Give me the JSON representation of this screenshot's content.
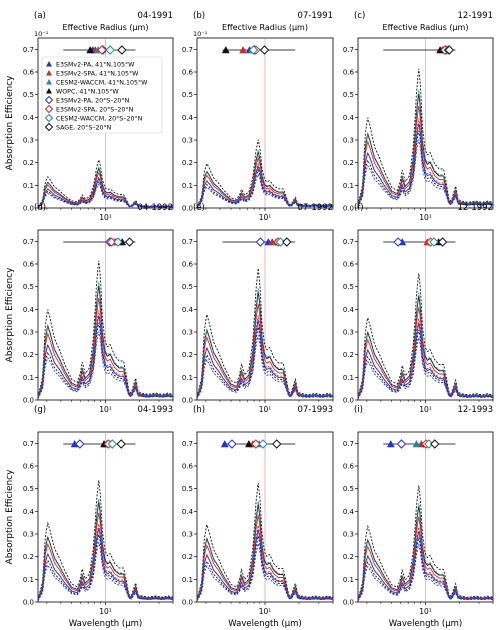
{
  "figure": {
    "xlabel": "Wavelength (μm)",
    "ylabel": "Absorption Efficiency",
    "top_axis_label": "Effective Radius (μm)",
    "top_tick_label": "10⁻¹",
    "yticks": [
      "0.0",
      "0.1",
      "0.2",
      "0.3",
      "0.4",
      "0.5",
      "0.6",
      "0.7"
    ],
    "xtick_label": "10¹",
    "ylim": [
      0,
      0.75
    ]
  },
  "series_style": {
    "E3SMv2-PA, 41°N,105°W": {
      "color": "#1f33e0",
      "marker": "triangle"
    },
    "E3SMv2-SPA, 41°N,105°W": {
      "color": "#d92626",
      "marker": "triangle"
    },
    "CESM2-WACCM, 41°N,105°W": {
      "color": "#1f8ea0",
      "marker": "triangle"
    },
    "WOPC, 41°N,105°W": {
      "color": "#111111",
      "marker": "triangle"
    },
    "E3SMv2-PA, 20°S–20°N": {
      "color": "#1f33e0",
      "marker": "diamond"
    },
    "E3SMv2-SPA, 20°S–20°N": {
      "color": "#d92626",
      "marker": "diamond"
    },
    "CESM2-WACCM, 20°S–20°N": {
      "color": "#1f8ea0",
      "marker": "diamond"
    },
    "SAGE, 20°S–20°N": {
      "color": "#111111",
      "marker": "diamond"
    }
  },
  "legend": [
    "E3SMv2-PA, 41°N,105°W",
    "E3SMv2-SPA, 41°N,105°W",
    "CESM2-WACCM, 41°N,105°W",
    "WOPC, 41°N,105°W",
    "E3SMv2-PA, 20°S–20°N",
    "E3SMv2-SPA, 20°S–20°N",
    "CESM2-WACCM, 20°S–20°N",
    "SAGE, 20°S–20°N"
  ],
  "chart_data": [
    {
      "type": "line",
      "panel": "(a)",
      "date": "04-1991",
      "scale": 0.19,
      "xlim": [
        2.5,
        40
      ],
      "xscale": "log",
      "reff": {
        "E3SMv2-PA, 41°N,105°W": 0.0077,
        "E3SMv2-SPA, 41°N,105°W": 0.0081,
        "CESM2-WACCM, 41°N,105°W": 0.0086,
        "WOPC, 41°N,105°W": 0.0073,
        "E3SMv2-PA, 20°S–20°N": 0.0095,
        "E3SMv2-SPA, 20°S–20°N": 0.0093,
        "CESM2-WACCM, 20°S–20°N": 0.011,
        "SAGE, 20°S–20°N": 0.014
      }
    },
    {
      "type": "line",
      "panel": "(b)",
      "date": "07-1991",
      "scale": 0.27,
      "xlim": [
        2.5,
        40
      ],
      "xscale": "log",
      "reff": {
        "E3SMv2-PA, 41°N,105°W": 0.0073,
        "E3SMv2-SPA, 41°N,105°W": 0.0064,
        "CESM2-WACCM, 41°N,105°W": 0.0077,
        "WOPC, 41°N,105°W": 0.0045,
        "E3SMv2-PA, 20°S–20°N": 0.0081,
        "E3SMv2-SPA, 20°S–20°N": 0.0083,
        "CESM2-WACCM, 20°S–20°N": 0.0079,
        "SAGE, 20°S–20°N": 0.0099
      }
    },
    {
      "type": "line",
      "panel": "(c)",
      "date": "12-1991",
      "scale": 0.55,
      "xlim": [
        2.5,
        40
      ],
      "xscale": "log",
      "reff": {
        "E3SMv2-PA, 41°N,105°W": 0.0143,
        "E3SMv2-SPA, 41°N,105°W": 0.0141,
        "CESM2-WACCM, 41°N,105°W": 0.0155,
        "WOPC, 41°N,105°W": 0.0135,
        "E3SMv2-PA, 20°S–20°N": 0.0152,
        "E3SMv2-SPA, 20°S–20°N": 0.0149,
        "CESM2-WACCM, 20°S–20°N": 0.0159,
        "SAGE, 20°S–20°N": 0.0163
      }
    },
    {
      "type": "line",
      "panel": "(d)",
      "date": "04-1992",
      "scale": 0.55,
      "xlim": [
        2.5,
        40
      ],
      "xscale": "log",
      "reff": {
        "E3SMv2-PA, 41°N,105°W": 0.0124,
        "E3SMv2-SPA, 41°N,105°W": 0.0121,
        "CESM2-WACCM, 41°N,105°W": 0.0133,
        "WOPC, 41°N,105°W": 0.0141,
        "E3SMv2-PA, 20°S–20°N": 0.0109,
        "E3SMv2-SPA, 20°S–20°N": 0.0113,
        "CESM2-WACCM, 20°S–20°N": 0.0129,
        "SAGE, 20°S–20°N": 0.0164
      }
    },
    {
      "type": "line",
      "panel": "(e)",
      "date": "07-1992",
      "scale": 0.52,
      "xlim": [
        2.5,
        40
      ],
      "xscale": "log",
      "reff": {
        "E3SMv2-PA, 41°N,105°W": 0.0107,
        "E3SMv2-SPA, 41°N,105°W": 0.0116,
        "CESM2-WACCM, 41°N,105°W": 0.0125,
        "WOPC, 41°N,105°W": 0.0133,
        "E3SMv2-PA, 20°S–20°N": 0.0091,
        "E3SMv2-SPA, 20°S–20°N": 0.0131,
        "CESM2-WACCM, 20°S–20°N": 0.0137,
        "SAGE, 20°S–20°N": 0.0156
      }
    },
    {
      "type": "line",
      "panel": "(f)",
      "date": "12-1992",
      "scale": 0.5,
      "xlim": [
        2.5,
        40
      ],
      "xscale": "log",
      "reff": {
        "E3SMv2-PA, 41°N,105°W": 0.0062,
        "E3SMv2-SPA, 41°N,105°W": 0.0104,
        "CESM2-WACCM, 41°N,105°W": 0.0117,
        "WOPC, 41°N,105°W": 0.0131,
        "E3SMv2-PA, 20°S–20°N": 0.0057,
        "E3SMv2-SPA, 20°S–20°N": 0.0111,
        "CESM2-WACCM, 20°S–20°N": 0.0119,
        "SAGE, 20°S–20°N": 0.0142
      }
    },
    {
      "type": "line",
      "panel": "(g)",
      "date": "04-1993",
      "scale": 0.48,
      "xlim": [
        2.5,
        40
      ],
      "xscale": "log",
      "reff": {
        "E3SMv2-PA, 41°N,105°W": 0.0053,
        "E3SMv2-SPA, 41°N,105°W": 0.0102,
        "CESM2-WACCM, 41°N,105°W": 0.0111,
        "WOPC, 41°N,105°W": 0.0097,
        "E3SMv2-PA, 20°S–20°N": 0.0059,
        "E3SMv2-SPA, 20°S–20°N": 0.0106,
        "CESM2-WACCM, 20°S–20°N": 0.0115,
        "SAGE, 20°S–20°N": 0.0138
      }
    },
    {
      "type": "line",
      "panel": "(h)",
      "date": "07-1993",
      "scale": 0.47,
      "xlim": [
        2.5,
        40
      ],
      "xscale": "log",
      "reff": {
        "E3SMv2-PA, 41°N,105°W": 0.0044,
        "E3SMv2-SPA, 41°N,105°W": 0.0078,
        "CESM2-WACCM, 41°N,105°W": 0.0089,
        "WOPC, 41°N,105°W": 0.0072,
        "E3SMv2-PA, 20°S–20°N": 0.0051,
        "E3SMv2-SPA, 20°S–20°N": 0.0083,
        "CESM2-WACCM, 20°S–20°N": 0.0096,
        "SAGE, 20°S–20°N": 0.0127
      }
    },
    {
      "type": "line",
      "panel": "(i)",
      "date": "12-1993",
      "scale": 0.46,
      "xlim": [
        2.5,
        40
      ],
      "xscale": "log",
      "reff": {
        "E3SMv2-PA, 41°N,105°W": 0.0049,
        "E3SMv2-SPA, 41°N,105°W": 0.0092,
        "CESM2-WACCM, 41°N,105°W": 0.0083,
        "WOPC, 41°N,105°W": 0.0102,
        "E3SMv2-PA, 20°S–20°N": 0.0061,
        "E3SMv2-SPA, 20°S–20°N": 0.0101,
        "CESM2-WACCM, 20°S–20°N": 0.0107,
        "SAGE, 20°S–20°N": 0.0121
      }
    }
  ]
}
